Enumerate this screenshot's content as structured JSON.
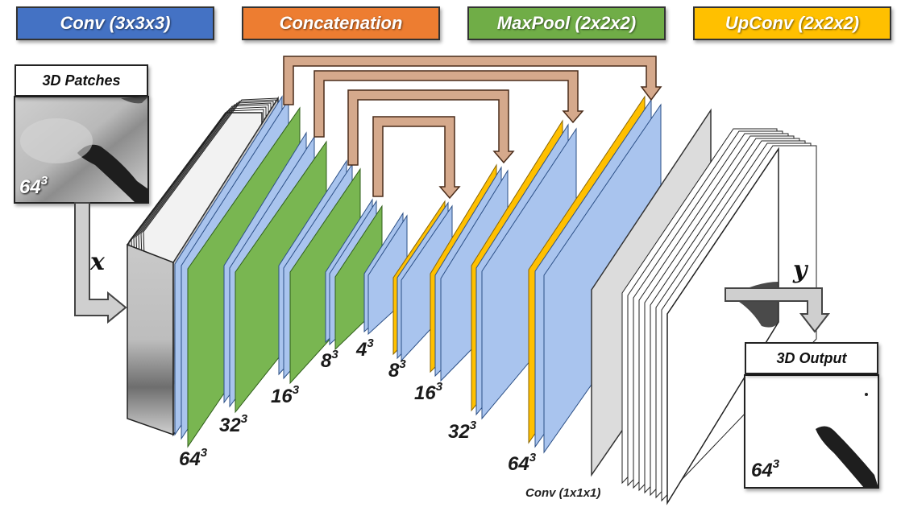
{
  "legend": {
    "conv": {
      "label": "Conv (3x3x3)",
      "color": "#4472c4"
    },
    "concat": {
      "label": "Concatenation",
      "color": "#ed7d31"
    },
    "maxpool": {
      "label": "MaxPool (2x2x2)",
      "color": "#70ad47"
    },
    "upconv": {
      "label": "UpConv (2x2x2)",
      "color": "#ffc000"
    }
  },
  "input": {
    "title": "3D Patches",
    "size_base": "64",
    "size_exp": "3",
    "var": "x"
  },
  "output": {
    "title": "3D Output",
    "size_base": "64",
    "size_exp": "3",
    "var": "y"
  },
  "dims": [
    {
      "base": "64",
      "exp": "3"
    },
    {
      "base": "32",
      "exp": "3"
    },
    {
      "base": "16",
      "exp": "3"
    },
    {
      "base": "8",
      "exp": "3"
    },
    {
      "base": "4",
      "exp": "3"
    },
    {
      "base": "8",
      "exp": "3"
    },
    {
      "base": "16",
      "exp": "3"
    },
    {
      "base": "32",
      "exp": "3"
    },
    {
      "base": "64",
      "exp": "3"
    }
  ],
  "final_conv_label": "Conv (1x1x1)",
  "colors": {
    "conv_fill": "#a9c4ee",
    "pool_fill": "#79b651",
    "upconv_fill": "#ffc000",
    "skip_fill": "#d5a98c",
    "skip_edge": "#4a2c1a",
    "arrow_fill": "#cfcfcf"
  }
}
